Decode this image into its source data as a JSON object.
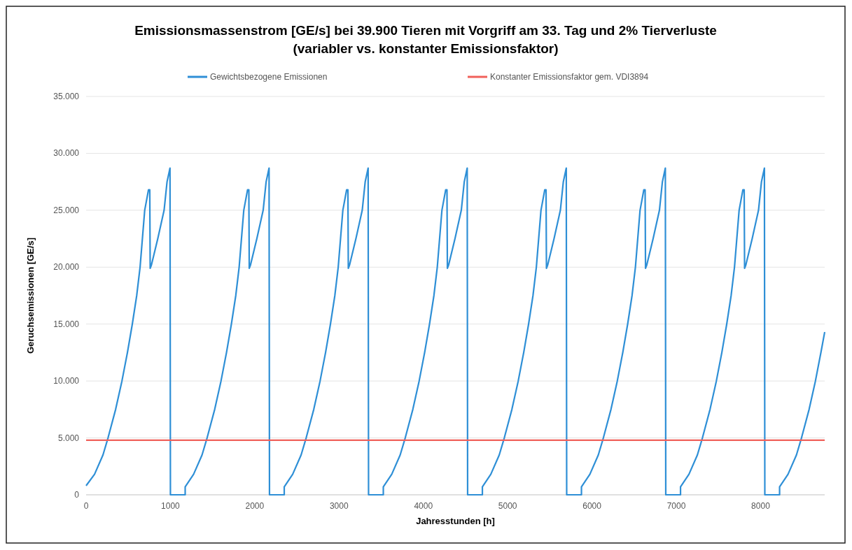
{
  "chart_data": {
    "type": "line",
    "title": "Emissionsmassenstrom [GE/s] bei 39.900 Tieren mit Vorgriff am 33. Tag und 2% Tierverluste",
    "subtitle": "(variabler vs. konstanter Emissionsfaktor)",
    "xlabel": "Jahresstunden [h]",
    "ylabel": "Geruchsemissionen [GE/s]",
    "xlim": [
      0,
      8760
    ],
    "xticks": [
      0,
      1000,
      2000,
      3000,
      4000,
      5000,
      6000,
      7000,
      8000
    ],
    "ylim": [
      0,
      35000
    ],
    "yticks": [
      {
        "value": 0,
        "label": "0"
      },
      {
        "value": 5000,
        "label": "5.000"
      },
      {
        "value": 10000,
        "label": "10.000"
      },
      {
        "value": 15000,
        "label": "15.000"
      },
      {
        "value": 20000,
        "label": "20.000"
      },
      {
        "value": 25000,
        "label": "25.000"
      },
      {
        "value": 30000,
        "label": "30.000"
      },
      {
        "value": 35000,
        "label": "35.000"
      }
    ],
    "grid": "y",
    "legend": "top",
    "line_style": "solid",
    "marker": "none",
    "series": [
      {
        "name": "Gewichtsbezogene Emissionen",
        "color": "#2e8fd6",
        "x": [
          0,
          100,
          200,
          260,
          350,
          425,
          490,
          548,
          600,
          640,
          695,
          740,
          755,
          760,
          775,
          850,
          925,
          960,
          995,
          1000,
          1175,
          1175,
          1275,
          1375,
          1435,
          1525,
          1600,
          1665,
          1723,
          1775,
          1815,
          1870,
          1915,
          1930,
          1935,
          1950,
          2025,
          2100,
          2135,
          2170,
          2175,
          2350,
          2350,
          2450,
          2550,
          2610,
          2700,
          2775,
          2840,
          2898,
          2950,
          2990,
          3045,
          3090,
          3105,
          3110,
          3125,
          3200,
          3275,
          3310,
          3345,
          3350,
          3525,
          3525,
          3625,
          3725,
          3785,
          3875,
          3950,
          4015,
          4073,
          4125,
          4165,
          4220,
          4265,
          4280,
          4285,
          4300,
          4375,
          4450,
          4485,
          4520,
          4525,
          4700,
          4700,
          4800,
          4900,
          4960,
          5050,
          5125,
          5190,
          5248,
          5300,
          5340,
          5395,
          5440,
          5455,
          5460,
          5475,
          5550,
          5625,
          5660,
          5695,
          5700,
          5875,
          5875,
          5975,
          6075,
          6135,
          6225,
          6300,
          6365,
          6423,
          6475,
          6515,
          6570,
          6615,
          6630,
          6635,
          6650,
          6725,
          6800,
          6835,
          6870,
          6875,
          7050,
          7050,
          7150,
          7250,
          7310,
          7400,
          7475,
          7540,
          7598,
          7650,
          7690,
          7745,
          7790,
          7805,
          7810,
          7825,
          7900,
          7975,
          8010,
          8045,
          8050,
          8225,
          8225,
          8325,
          8425,
          8485,
          8575,
          8650,
          8715,
          8760
        ],
        "values": [
          800,
          1800,
          3500,
          5000,
          7500,
          10000,
          12500,
          15000,
          17500,
          20000,
          25000,
          26800,
          26800,
          19900,
          20200,
          22500,
          25000,
          27500,
          28700,
          0,
          0,
          700,
          1800,
          3500,
          5000,
          7500,
          10000,
          12500,
          15000,
          17500,
          20000,
          25000,
          26800,
          26800,
          19900,
          20200,
          22500,
          25000,
          27500,
          28700,
          0,
          0,
          700,
          1800,
          3500,
          5000,
          7500,
          10000,
          12500,
          15000,
          17500,
          20000,
          25000,
          26800,
          26800,
          19900,
          20200,
          22500,
          25000,
          27500,
          28700,
          0,
          0,
          700,
          1800,
          3500,
          5000,
          7500,
          10000,
          12500,
          15000,
          17500,
          20000,
          25000,
          26800,
          26800,
          19900,
          20200,
          22500,
          25000,
          27500,
          28700,
          0,
          0,
          700,
          1800,
          3500,
          5000,
          7500,
          10000,
          12500,
          15000,
          17500,
          20000,
          25000,
          26800,
          26800,
          19900,
          20200,
          22500,
          25000,
          27500,
          28700,
          0,
          0,
          700,
          1800,
          3500,
          5000,
          7500,
          10000,
          12500,
          15000,
          17500,
          20000,
          25000,
          26800,
          26800,
          19900,
          20200,
          22500,
          25000,
          27500,
          28700,
          0,
          0,
          700,
          1800,
          3500,
          5000,
          7500,
          10000,
          12500,
          15000,
          17500,
          20000,
          25000,
          26800,
          26800,
          19900,
          20200,
          22500,
          25000,
          27500,
          28700,
          0,
          0,
          700,
          1800,
          3500,
          5000,
          7500,
          10000,
          12500,
          14300
        ]
      },
      {
        "name": "Konstanter Emissionsfaktor gem. VDI3894",
        "color": "#f0605a",
        "x": [
          0,
          8760
        ],
        "values": [
          4800,
          4800
        ]
      }
    ]
  }
}
